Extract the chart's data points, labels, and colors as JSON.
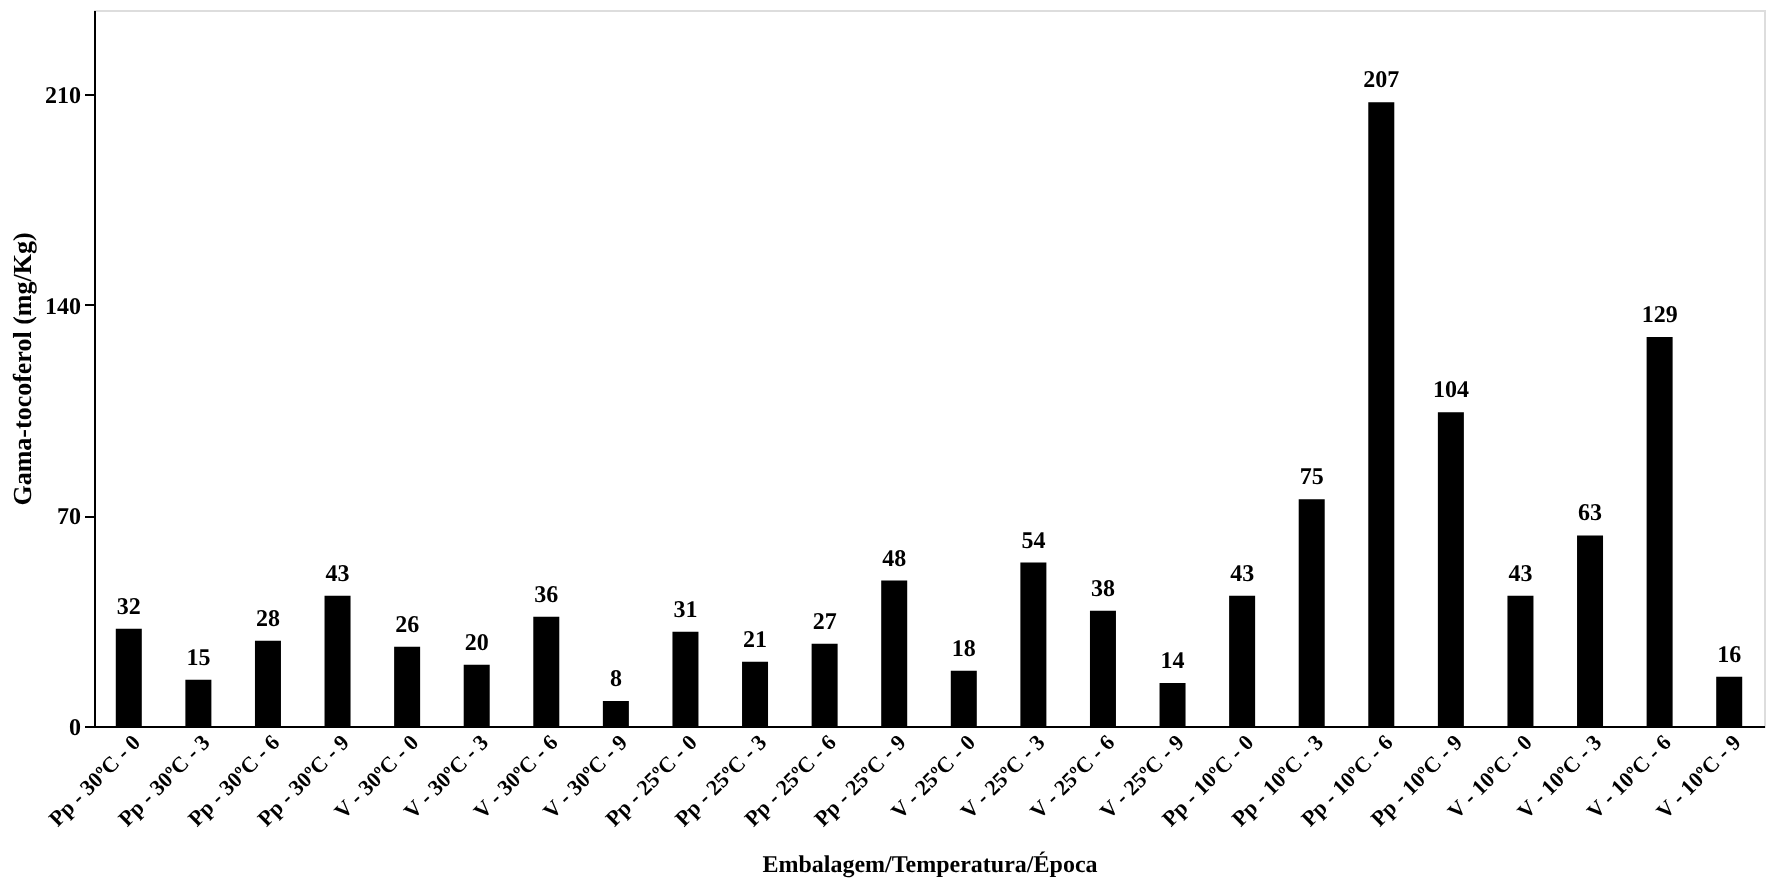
{
  "chart_data": {
    "type": "bar",
    "xlabel": "Embalagem/Temperatura/Época",
    "ylabel": "Gama-tocoferol (mg/Kg)",
    "categories": [
      "Pp - 30ºC - 0",
      "Pp - 30ºC - 3",
      "Pp - 30ºC - 6",
      "Pp - 30ºC - 9",
      "V - 30ºC - 0",
      "V - 30ºC - 3",
      "V - 30ºC - 6",
      "V - 30ºC - 9",
      "Pp - 25ºC - 0",
      "Pp - 25ºC - 3",
      "Pp - 25ºC - 6",
      "Pp - 25ºC - 9",
      "V - 25ºC - 0",
      "V - 25ºC - 3",
      "V - 25ºC - 6",
      "V - 25ºC - 9",
      "Pp - 10ºC - 0",
      "Pp - 10ºC - 3",
      "Pp - 10ºC - 6",
      "Pp - 10ºC - 9",
      "V - 10ºC - 0",
      "V - 10ºC - 3",
      "V - 10ºC - 6",
      "V - 10ºC - 9"
    ],
    "values": [
      32,
      15,
      28,
      43,
      26,
      20,
      36,
      8,
      31,
      21,
      27,
      48,
      18,
      54,
      38,
      14,
      43,
      75,
      207,
      104,
      43,
      63,
      129,
      16
    ],
    "color": "#000000",
    "ylim": [
      0,
      238
    ],
    "yticks": [
      0,
      70,
      140,
      210
    ],
    "grid": false,
    "data_labels": true
  }
}
